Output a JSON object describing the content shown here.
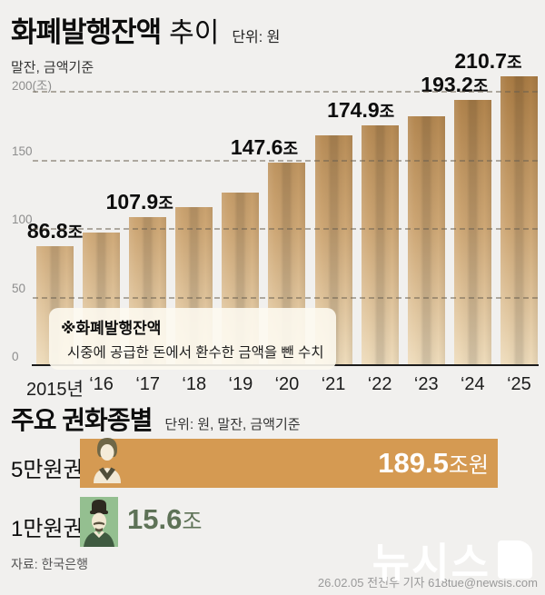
{
  "page": {
    "background": "#f1f0ee"
  },
  "header": {
    "title": "화폐발행잔액",
    "title_suffix": "추이",
    "unit_label": "단위: 원",
    "basis_label": "말잔, 금액기준"
  },
  "chart_data": {
    "type": "bar",
    "title": "화폐발행잔액 추이",
    "unit": "원",
    "basis": "말잔, 금액기준",
    "categories": [
      "2015년",
      "‘16",
      "‘17",
      "‘18",
      "‘19",
      "‘20",
      "‘21",
      "‘22",
      "‘23",
      "‘24",
      "‘25"
    ],
    "values": [
      86.8,
      96.8,
      107.9,
      115.0,
      125.8,
      147.6,
      167.5,
      174.9,
      181.5,
      193.2,
      210.7
    ],
    "value_labels": [
      "86.8",
      null,
      "107.9",
      null,
      null,
      "147.6",
      null,
      "174.9",
      null,
      "193.2",
      "210.7"
    ],
    "value_suffix": "조",
    "yticks": [
      0,
      50,
      100,
      150,
      200
    ],
    "ytick_labels": [
      "0",
      "50",
      "100",
      "150",
      "200(조)"
    ],
    "ylim": [
      0,
      215
    ],
    "grid": "dashed-horizontal-over-bars",
    "bar_gradient_top": "#aa7c44",
    "bar_gradient_bottom": "#eedcbc",
    "annotation": {
      "title": "※화폐발행잔액",
      "body": "시중에 공급한 돈에서 환수한 금액을 뺀 수치"
    }
  },
  "denominations": {
    "title": "주요 권화종별",
    "unit_label": "단위: 원, 말잔, 금액기준",
    "rows": [
      {
        "label": "5만원권",
        "value": "189.5",
        "suffix": "조원",
        "bar_color": "#d59a52",
        "icon": "shin-saimdang-portrait"
      },
      {
        "label": "1만원권",
        "value": "15.6",
        "suffix": "조",
        "bar_color": "#94bf90",
        "icon": "king-sejong-portrait",
        "value_color": "#5e7257"
      }
    ]
  },
  "source": "자료: 한국은행",
  "footer": {
    "logo": "뉴시스",
    "credit": "26.02.05 전진우 기자 618tue@newsis.com"
  }
}
